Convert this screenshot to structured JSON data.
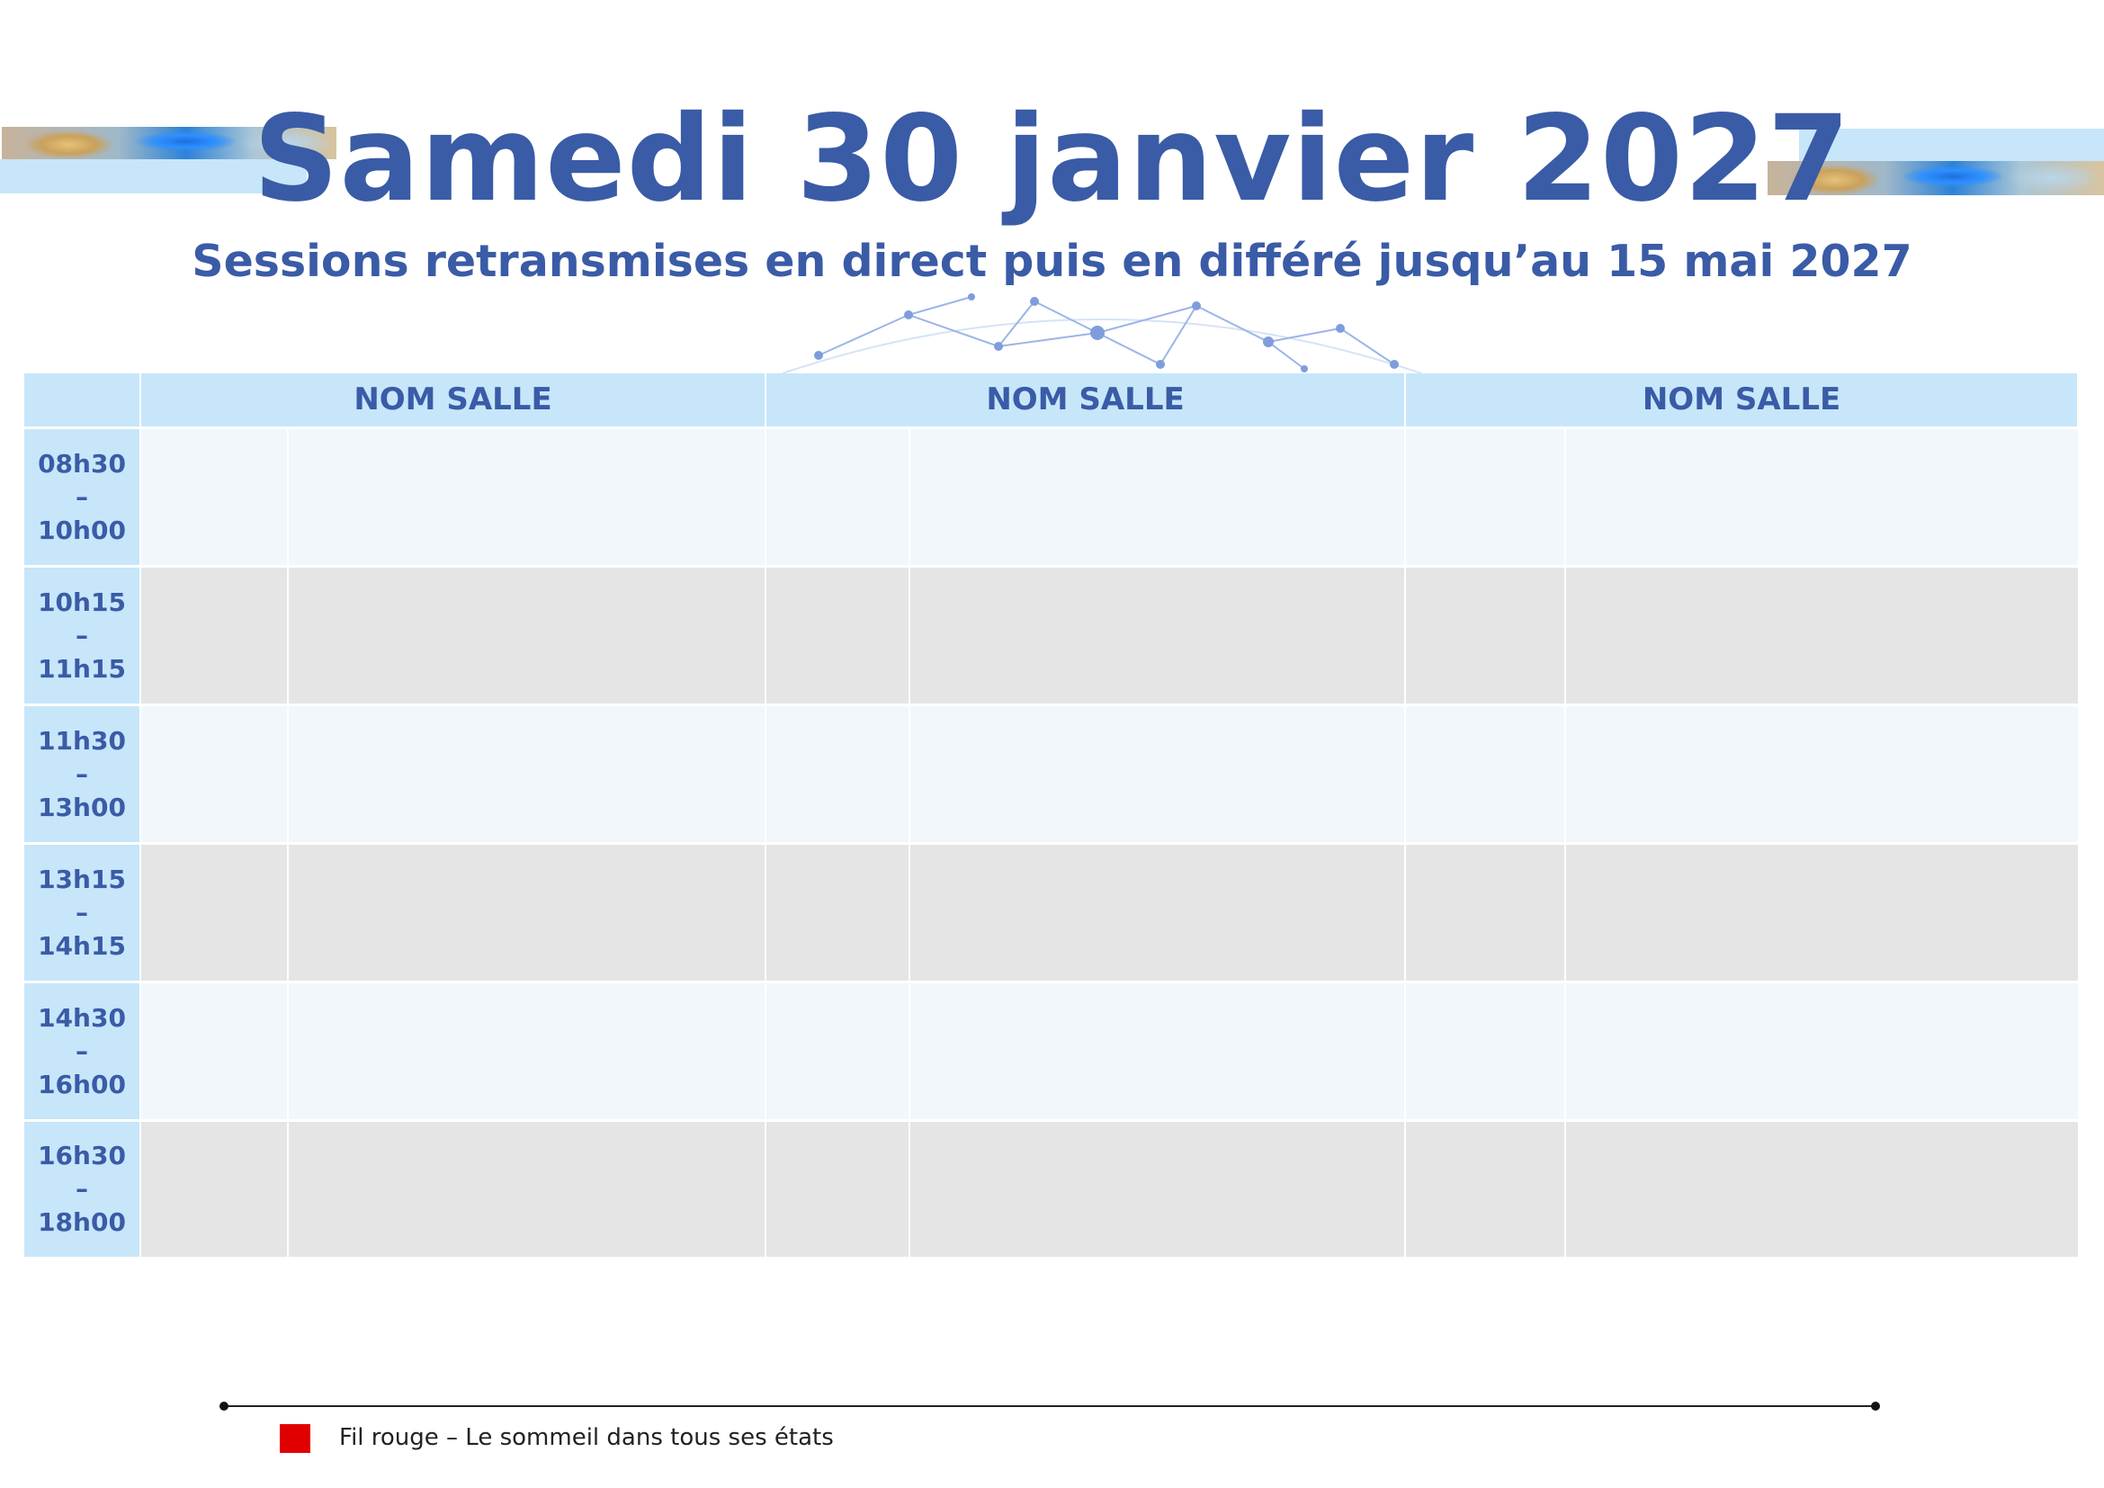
{
  "header": {
    "title": "Samedi 30 janvier 2027",
    "subtitle": "Sessions retransmises en direct puis en différé jusqu’au 15 mai 2027"
  },
  "schedule": {
    "rooms": [
      "NOM SALLE",
      "NOM SALLE",
      "NOM SALLE"
    ],
    "slots": [
      {
        "start": "08h30",
        "sep": "–",
        "end": "10h00"
      },
      {
        "start": "10h15",
        "sep": "–",
        "end": "11h15"
      },
      {
        "start": "11h30",
        "sep": "–",
        "end": "13h00"
      },
      {
        "start": "13h15",
        "sep": "–",
        "end": "14h15"
      },
      {
        "start": "14h30",
        "sep": "–",
        "end": "16h00"
      },
      {
        "start": "16h30",
        "sep": "–",
        "end": "18h00"
      }
    ]
  },
  "legend": {
    "items": [
      {
        "label": "Fil rouge – Le sommeil dans tous ses états",
        "color": "#e00000"
      }
    ]
  },
  "colors": {
    "primary": "#3a5ba6",
    "header_fill": "#c7e6fa",
    "row_light": "#f2f7fc",
    "row_dark": "#e5e5e5"
  }
}
